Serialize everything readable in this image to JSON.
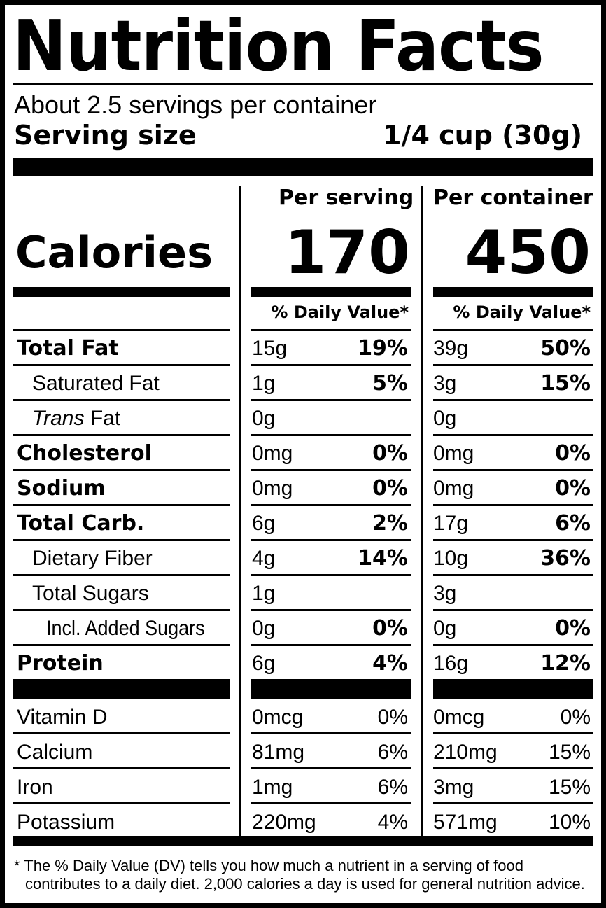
{
  "title": "Nutrition Facts",
  "servings_per_container": "About 2.5 servings per container",
  "serving_size_label": "Serving size",
  "serving_size_value": "1/4 cup (30g)",
  "columns": {
    "per_serving": "Per serving",
    "per_container": "Per container",
    "dv_header": "% Daily Value*"
  },
  "calories": {
    "label": "Calories",
    "per_serving": "170",
    "per_container": "450"
  },
  "nutrients": [
    {
      "name": "Total Fat",
      "style": "bold",
      "s_amt": "15g",
      "s_dv": "19%",
      "c_amt": "39g",
      "c_dv": "50%"
    },
    {
      "name": "Saturated Fat",
      "style": "indent",
      "s_amt": "1g",
      "s_dv": "5%",
      "c_amt": "3g",
      "c_dv": "15%"
    },
    {
      "name_italic": "Trans",
      "name": "Fat",
      "style": "indent",
      "s_amt": "0g",
      "s_dv": "",
      "c_amt": "0g",
      "c_dv": ""
    },
    {
      "name": "Cholesterol",
      "style": "bold",
      "s_amt": "0mg",
      "s_dv": "0%",
      "c_amt": "0mg",
      "c_dv": "0%"
    },
    {
      "name": "Sodium",
      "style": "bold",
      "s_amt": "0mg",
      "s_dv": "0%",
      "c_amt": "0mg",
      "c_dv": "0%"
    },
    {
      "name": "Total Carb.",
      "style": "bold",
      "s_amt": "6g",
      "s_dv": "2%",
      "c_amt": "17g",
      "c_dv": "6%"
    },
    {
      "name": "Dietary Fiber",
      "style": "indent",
      "s_amt": "4g",
      "s_dv": "14%",
      "c_amt": "10g",
      "c_dv": "36%"
    },
    {
      "name": "Total Sugars",
      "style": "indent",
      "s_amt": "1g",
      "s_dv": "",
      "c_amt": "3g",
      "c_dv": ""
    },
    {
      "name": "Incl. Added Sugars",
      "style": "indent2",
      "s_amt": "0g",
      "s_dv": "0%",
      "c_amt": "0g",
      "c_dv": "0%"
    },
    {
      "name": "Protein",
      "style": "bold",
      "s_amt": "6g",
      "s_dv": "4%",
      "c_amt": "16g",
      "c_dv": "12%"
    }
  ],
  "vitamins": [
    {
      "name": "Vitamin D",
      "s_amt": "0mcg",
      "s_dv": "0%",
      "c_amt": "0mcg",
      "c_dv": "0%"
    },
    {
      "name": "Calcium",
      "s_amt": "81mg",
      "s_dv": "6%",
      "c_amt": "210mg",
      "c_dv": "15%"
    },
    {
      "name": "Iron",
      "s_amt": "1mg",
      "s_dv": "6%",
      "c_amt": "3mg",
      "c_dv": "15%"
    },
    {
      "name": "Potassium",
      "s_amt": "220mg",
      "s_dv": "4%",
      "c_amt": "571mg",
      "c_dv": "10%"
    }
  ],
  "footnote_line1": "* The % Daily Value (DV) tells you how much a nutrient in a serving of food",
  "footnote_line2": "contributes to a daily diet. 2,000 calories a day is used for general nutrition advice."
}
